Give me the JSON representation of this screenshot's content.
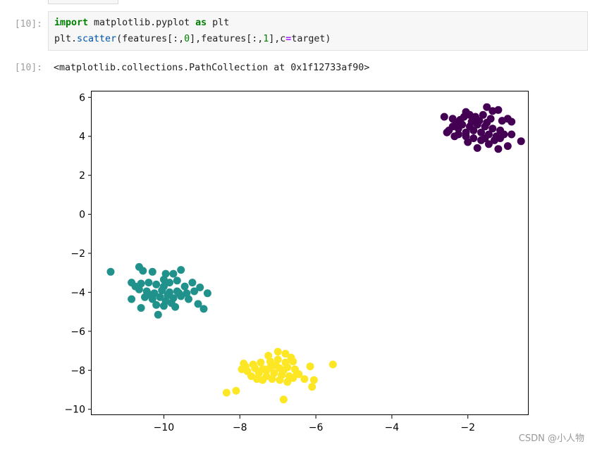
{
  "cell": {
    "in_prompt": "[10]:",
    "out_prompt": "[10]:",
    "code_line1": {
      "kw1": "import",
      "mod": " matplotlib.pyplot ",
      "kw2": "as",
      "alias": " plt"
    },
    "code_line2": {
      "a": "plt.",
      "fn": "scatter",
      "b": "(features[:,",
      "n0": "0",
      "c": "],features[:,",
      "n1": "1",
      "d": "],c",
      "eq": "=",
      "e": "target)"
    },
    "output_repr": "<matplotlib.collections.PathCollection at 0x1f12733af90>"
  },
  "watermark": "CSDN @小人物",
  "chart_data": {
    "type": "scatter",
    "xlim": [
      -11.9,
      -0.4
    ],
    "ylim": [
      -10.3,
      6.3
    ],
    "xticks": [
      -10,
      -8,
      -6,
      -4,
      -2
    ],
    "yticks": [
      6,
      4,
      2,
      0,
      -2,
      -4,
      -6,
      -8,
      -10
    ],
    "xtick_labels": [
      "−10",
      "−8",
      "−6",
      "−4",
      "−2"
    ],
    "ytick_labels": [
      "6",
      "4",
      "2",
      "0",
      "−2",
      "−4",
      "−6",
      "−8",
      "−10"
    ],
    "grid": false,
    "colors": {
      "class0": "#440154",
      "class1": "#21918c",
      "class2": "#fde725"
    },
    "series": [
      {
        "color": "#440154",
        "points": [
          [
            -2.62,
            5.0
          ],
          [
            -2.4,
            4.9
          ],
          [
            -2.3,
            4.7
          ],
          [
            -2.1,
            5.0
          ],
          [
            -2.05,
            5.25
          ],
          [
            -1.95,
            5.1
          ],
          [
            -1.8,
            5.0
          ],
          [
            -1.6,
            5.1
          ],
          [
            -1.5,
            5.5
          ],
          [
            -1.35,
            5.3
          ],
          [
            -1.2,
            5.35
          ],
          [
            -1.1,
            4.8
          ],
          [
            -0.95,
            4.9
          ],
          [
            -0.85,
            4.75
          ],
          [
            -2.5,
            4.3
          ],
          [
            -2.4,
            4.5
          ],
          [
            -2.25,
            4.4
          ],
          [
            -2.15,
            4.6
          ],
          [
            -2.05,
            4.2
          ],
          [
            -1.95,
            4.5
          ],
          [
            -1.85,
            4.3
          ],
          [
            -1.75,
            4.6
          ],
          [
            -1.65,
            4.2
          ],
          [
            -1.55,
            4.5
          ],
          [
            -1.45,
            4.1
          ],
          [
            -1.35,
            4.4
          ],
          [
            -1.25,
            4.0
          ],
          [
            -1.15,
            4.3
          ],
          [
            -1.05,
            4.1
          ],
          [
            -0.85,
            4.1
          ],
          [
            -0.6,
            3.75
          ],
          [
            -0.95,
            3.5
          ],
          [
            -1.2,
            3.35
          ],
          [
            -1.45,
            3.6
          ],
          [
            -1.65,
            3.8
          ],
          [
            -1.85,
            3.9
          ],
          [
            -2.05,
            4.0
          ],
          [
            -2.25,
            4.1
          ],
          [
            -1.75,
            3.4
          ],
          [
            -2.0,
            3.7
          ],
          [
            -1.55,
            3.9
          ],
          [
            -1.3,
            3.8
          ],
          [
            -1.15,
            3.9
          ],
          [
            -2.55,
            4.2
          ],
          [
            -2.35,
            4.0
          ],
          [
            -1.7,
            4.8
          ],
          [
            -1.5,
            4.7
          ],
          [
            -1.4,
            4.9
          ],
          [
            -1.9,
            4.75
          ],
          [
            -2.2,
            4.85
          ]
        ]
      },
      {
        "color": "#21918c",
        "points": [
          [
            -11.4,
            -2.95
          ],
          [
            -10.65,
            -2.7
          ],
          [
            -10.55,
            -2.9
          ],
          [
            -10.3,
            -2.95
          ],
          [
            -9.95,
            -3.05
          ],
          [
            -9.75,
            -3.05
          ],
          [
            -9.55,
            -2.85
          ],
          [
            -10.85,
            -3.5
          ],
          [
            -10.6,
            -3.55
          ],
          [
            -10.4,
            -3.5
          ],
          [
            -10.2,
            -3.6
          ],
          [
            -10.0,
            -3.35
          ],
          [
            -9.85,
            -3.5
          ],
          [
            -9.65,
            -3.4
          ],
          [
            -9.45,
            -3.7
          ],
          [
            -9.25,
            -3.5
          ],
          [
            -9.05,
            -3.75
          ],
          [
            -10.65,
            -3.85
          ],
          [
            -10.45,
            -3.95
          ],
          [
            -10.25,
            -4.05
          ],
          [
            -10.05,
            -3.9
          ],
          [
            -9.85,
            -4.0
          ],
          [
            -9.65,
            -3.95
          ],
          [
            -9.4,
            -4.05
          ],
          [
            -9.2,
            -3.95
          ],
          [
            -8.85,
            -4.05
          ],
          [
            -10.5,
            -4.25
          ],
          [
            -10.3,
            -4.35
          ],
          [
            -10.1,
            -4.25
          ],
          [
            -9.95,
            -4.45
          ],
          [
            -9.75,
            -4.3
          ],
          [
            -9.55,
            -4.2
          ],
          [
            -9.35,
            -4.35
          ],
          [
            -10.85,
            -4.35
          ],
          [
            -10.6,
            -4.8
          ],
          [
            -10.2,
            -4.65
          ],
          [
            -10.0,
            -4.7
          ],
          [
            -9.8,
            -4.55
          ],
          [
            -9.7,
            -4.75
          ],
          [
            -9.1,
            -4.6
          ],
          [
            -8.95,
            -4.85
          ],
          [
            -10.15,
            -5.15
          ],
          [
            -10.4,
            -4.1
          ],
          [
            -9.9,
            -4.15
          ],
          [
            -9.6,
            -4.05
          ],
          [
            -10.75,
            -3.7
          ],
          [
            -10.0,
            -3.7
          ]
        ]
      },
      {
        "color": "#fde725",
        "points": [
          [
            -7.25,
            -7.25
          ],
          [
            -7.0,
            -7.05
          ],
          [
            -6.8,
            -7.15
          ],
          [
            -6.65,
            -7.35
          ],
          [
            -5.55,
            -7.7
          ],
          [
            -7.45,
            -7.6
          ],
          [
            -7.2,
            -7.55
          ],
          [
            -7.0,
            -7.45
          ],
          [
            -6.8,
            -7.6
          ],
          [
            -6.6,
            -7.55
          ],
          [
            -7.65,
            -7.7
          ],
          [
            -7.85,
            -7.8
          ],
          [
            -7.6,
            -7.9
          ],
          [
            -7.4,
            -7.95
          ],
          [
            -7.2,
            -7.85
          ],
          [
            -6.95,
            -7.9
          ],
          [
            -6.75,
            -7.85
          ],
          [
            -6.55,
            -7.95
          ],
          [
            -6.15,
            -7.8
          ],
          [
            -7.5,
            -8.15
          ],
          [
            -7.3,
            -8.3
          ],
          [
            -7.1,
            -8.15
          ],
          [
            -6.9,
            -8.25
          ],
          [
            -6.7,
            -8.3
          ],
          [
            -6.5,
            -8.15
          ],
          [
            -7.95,
            -7.95
          ],
          [
            -7.7,
            -8.3
          ],
          [
            -7.15,
            -8.45
          ],
          [
            -6.95,
            -8.5
          ],
          [
            -6.75,
            -8.6
          ],
          [
            -6.3,
            -8.45
          ],
          [
            -6.05,
            -8.5
          ],
          [
            -6.1,
            -8.85
          ],
          [
            -7.55,
            -8.45
          ],
          [
            -7.8,
            -8.05
          ],
          [
            -8.35,
            -9.15
          ],
          [
            -8.1,
            -9.05
          ],
          [
            -6.85,
            -9.5
          ],
          [
            -7.4,
            -8.5
          ],
          [
            -6.85,
            -8.0
          ],
          [
            -7.05,
            -7.75
          ],
          [
            -7.3,
            -8.0
          ],
          [
            -6.6,
            -8.4
          ],
          [
            -6.45,
            -8.2
          ],
          [
            -7.9,
            -7.65
          ],
          [
            -7.35,
            -7.95
          ]
        ]
      }
    ]
  }
}
